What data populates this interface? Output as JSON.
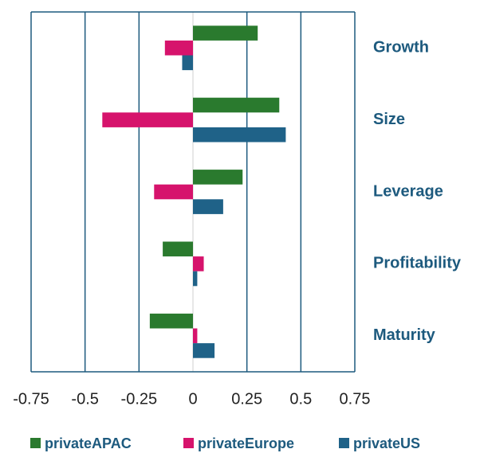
{
  "chart_data": {
    "type": "hbar",
    "categories": [
      "Growth",
      "Size",
      "Leverage",
      "Profitability",
      "Maturity"
    ],
    "series": [
      {
        "name": "privateAPAC",
        "color": "#2a7a2e",
        "values": [
          0.3,
          0.4,
          0.23,
          -0.14,
          -0.2
        ]
      },
      {
        "name": "privateEurope",
        "color": "#d6136c",
        "values": [
          -0.13,
          -0.42,
          -0.18,
          0.05,
          0.02
        ]
      },
      {
        "name": "privateUS",
        "color": "#1f6288",
        "values": [
          -0.05,
          0.43,
          0.14,
          0.02,
          0.1
        ]
      }
    ],
    "xlim": [
      -0.75,
      0.75
    ],
    "xticks": [
      -0.75,
      -0.5,
      -0.25,
      0,
      0.25,
      0.5,
      0.75
    ],
    "grid": true,
    "legend": "bottom"
  }
}
